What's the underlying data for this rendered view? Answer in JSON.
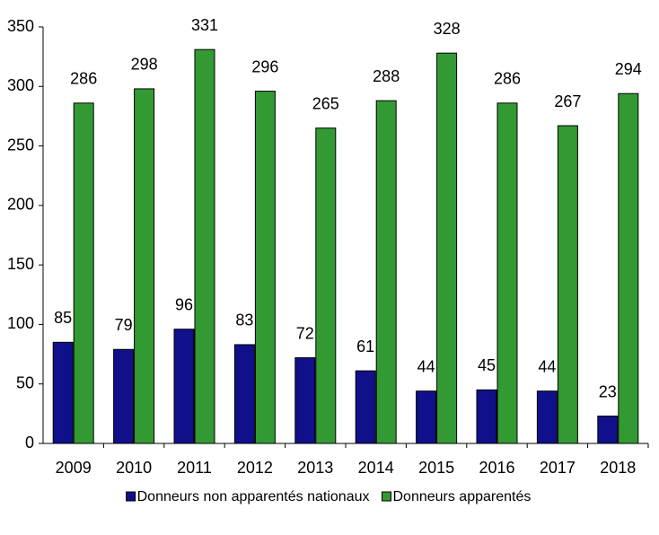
{
  "chart_data": {
    "type": "bar",
    "categories": [
      "2009",
      "2010",
      "2011",
      "2012",
      "2013",
      "2014",
      "2015",
      "2016",
      "2017",
      "2018"
    ],
    "series": [
      {
        "name": "Donneurs non apparentés nationaux",
        "color": "#10108a",
        "values": [
          85,
          79,
          96,
          83,
          72,
          61,
          44,
          45,
          44,
          23
        ]
      },
      {
        "name": "Donneurs apparentés",
        "color": "#339933",
        "values": [
          286,
          298,
          331,
          296,
          265,
          288,
          328,
          286,
          267,
          294
        ]
      }
    ],
    "ylim": [
      0,
      350
    ],
    "yticks": [
      0,
      50,
      100,
      150,
      200,
      250,
      300,
      350
    ],
    "legend": "bottom"
  }
}
